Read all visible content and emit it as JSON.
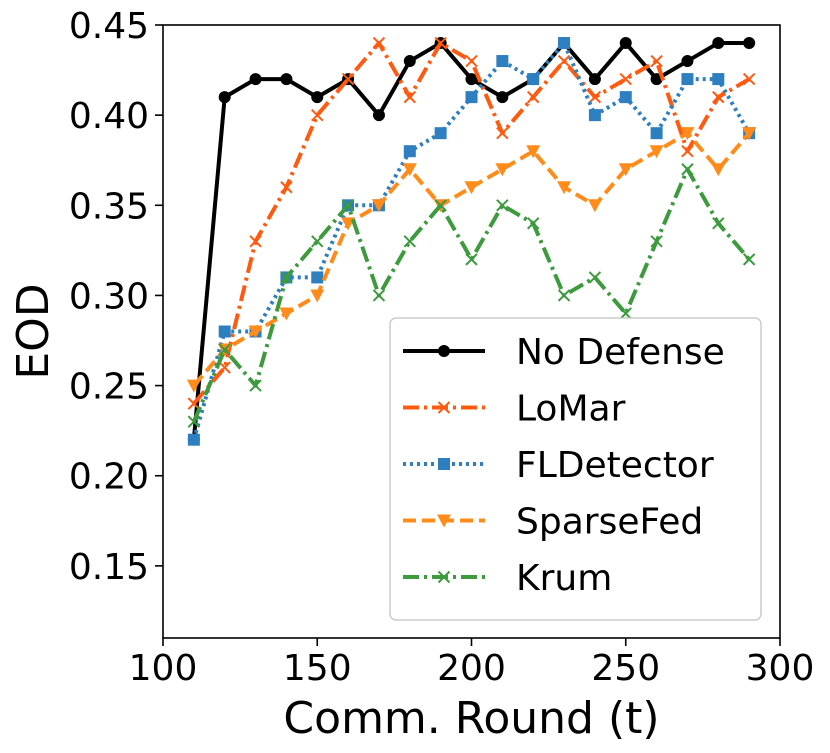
{
  "chart_data": {
    "type": "line",
    "title": "",
    "xlabel": "Comm. Round (t)",
    "ylabel": "EOD",
    "xlim": [
      100,
      300
    ],
    "ylim": [
      0.11,
      0.45
    ],
    "xticks": [
      100,
      150,
      200,
      250,
      300
    ],
    "xtick_labels": [
      "100",
      "150",
      "200",
      "250",
      "300"
    ],
    "yticks": [
      0.15,
      0.2,
      0.25,
      0.3,
      0.35,
      0.4,
      0.45
    ],
    "ytick_labels": [
      "0.15",
      "0.20",
      "0.25",
      "0.30",
      "0.35",
      "0.40",
      "0.45"
    ],
    "grid": false,
    "legend_position": "lower-right",
    "x": [
      110,
      120,
      130,
      140,
      150,
      160,
      170,
      180,
      190,
      200,
      210,
      220,
      230,
      240,
      250,
      260,
      270,
      280,
      290
    ],
    "series": [
      {
        "name": "No Defense",
        "color": "#000000",
        "line_style": "solid",
        "marker": "circle",
        "values": [
          0.22,
          0.41,
          0.42,
          0.42,
          0.41,
          0.42,
          0.4,
          0.43,
          0.44,
          0.42,
          0.41,
          0.42,
          0.44,
          0.42,
          0.44,
          0.42,
          0.43,
          0.44,
          0.44
        ]
      },
      {
        "name": "LoMar",
        "color": "#ff5a10",
        "line_style": "dashdot",
        "marker": "x",
        "values": [
          0.24,
          0.26,
          0.33,
          0.36,
          0.4,
          0.42,
          0.44,
          0.41,
          0.44,
          0.43,
          0.39,
          0.41,
          0.43,
          0.41,
          0.42,
          0.43,
          0.38,
          0.41,
          0.42
        ]
      },
      {
        "name": "FLDetector",
        "color": "#2e7fbf",
        "line_style": "dotted",
        "marker": "square",
        "values": [
          0.22,
          0.28,
          0.28,
          0.31,
          0.31,
          0.35,
          0.35,
          0.38,
          0.39,
          0.41,
          0.43,
          0.42,
          0.44,
          0.4,
          0.41,
          0.39,
          0.42,
          0.42,
          0.39
        ]
      },
      {
        "name": "SparseFed",
        "color": "#ff8c1a",
        "line_style": "dashed",
        "marker": "triangle-down",
        "values": [
          0.25,
          0.27,
          0.28,
          0.29,
          0.3,
          0.34,
          0.35,
          0.37,
          0.35,
          0.36,
          0.37,
          0.38,
          0.36,
          0.35,
          0.37,
          0.38,
          0.39,
          0.37,
          0.39
        ]
      },
      {
        "name": "Krum",
        "color": "#3d9a3d",
        "line_style": "dashdot",
        "marker": "x",
        "values": [
          0.23,
          0.27,
          0.25,
          0.31,
          0.33,
          0.35,
          0.3,
          0.33,
          0.35,
          0.32,
          0.35,
          0.34,
          0.3,
          0.31,
          0.29,
          0.33,
          0.37,
          0.34,
          0.32
        ]
      }
    ]
  }
}
